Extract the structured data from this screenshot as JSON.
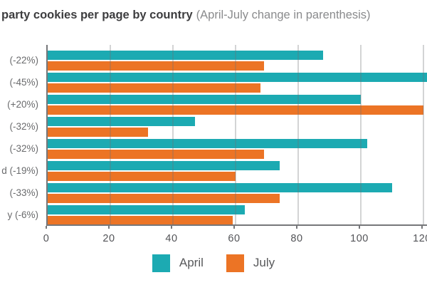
{
  "chart_data": {
    "type": "bar",
    "orientation": "horizontal",
    "title": "party cookies per page by country",
    "subtitle": "(April-July change in parenthesis)",
    "categories": [
      "(-22%)",
      "(-45%)",
      "(+20%)",
      "(-32%)",
      "(-32%)",
      "d (-19%)",
      "(-33%)",
      "y (-6%)"
    ],
    "series": [
      {
        "name": "April",
        "color": "#1caab2",
        "values": [
          88,
          124,
          100,
          47,
          102,
          74,
          110,
          63
        ]
      },
      {
        "name": "July",
        "color": "#ec7425",
        "values": [
          69,
          68,
          120,
          32,
          69,
          60,
          74,
          59
        ]
      }
    ],
    "xlim": [
      0,
      120
    ],
    "xticks": [
      "0",
      "20",
      "40",
      "60",
      "80",
      "100",
      "120"
    ],
    "grid": true,
    "legend_position": "bottom",
    "colors": {
      "april": "#1caab2",
      "july": "#ec7425",
      "axis": "#76777a",
      "gridline": "#c8c9cb",
      "title_text": "#3d3d3f",
      "subtitle_text": "#8a8b8d",
      "label_text": "#6a6b6d"
    }
  }
}
